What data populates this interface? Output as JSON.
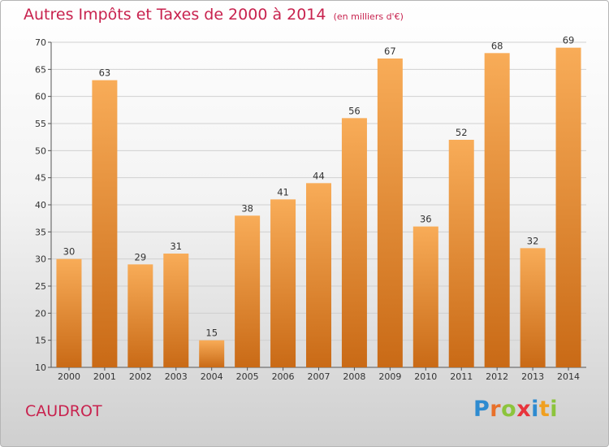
{
  "title": {
    "main": "Autres Impôts et Taxes de 2000 à 2014",
    "unit": "(en milliers d'€)"
  },
  "commune": "CAUDROT",
  "logo": {
    "text": "Proxiti",
    "letters": [
      {
        "char": "P",
        "color": "#2e8bd0"
      },
      {
        "char": "r",
        "color": "#e8702a"
      },
      {
        "char": "o",
        "color": "#8cc43c"
      },
      {
        "char": "x",
        "color": "#e8343c"
      },
      {
        "char": "i",
        "color": "#2e8bd0"
      },
      {
        "char": "t",
        "color": "#f0a020"
      },
      {
        "char": "i",
        "color": "#8cc43c"
      }
    ]
  },
  "colors": {
    "bar_light": "#f8ac58",
    "bar_dark": "#c96a16",
    "grid": "#d0d0d0",
    "axis": "#555555",
    "title": "#c8224e"
  },
  "chart_data": {
    "type": "bar",
    "categories": [
      "2000",
      "2001",
      "2002",
      "2003",
      "2004",
      "2005",
      "2006",
      "2007",
      "2008",
      "2009",
      "2010",
      "2011",
      "2012",
      "2013",
      "2014"
    ],
    "values": [
      30,
      63,
      29,
      31,
      15,
      38,
      41,
      44,
      56,
      67,
      36,
      52,
      68,
      32,
      69
    ],
    "ylim": [
      10,
      70
    ],
    "yticks": [
      10,
      15,
      20,
      25,
      30,
      35,
      40,
      45,
      50,
      55,
      60,
      65,
      70
    ],
    "grid": true,
    "data_labels": true
  }
}
